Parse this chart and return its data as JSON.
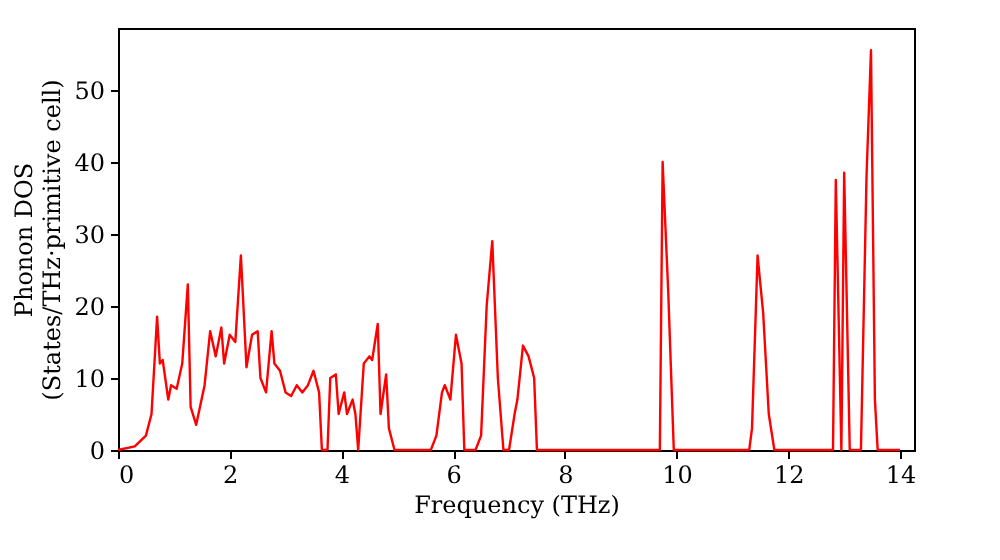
{
  "chart_data": {
    "type": "line",
    "xlabel": "Frequency (THz)",
    "ylabel": "Phonon DOS\n(States/THz·primitive cell)",
    "xlim": [
      0,
      14.25
    ],
    "ylim": [
      0,
      58.6
    ],
    "xticks": [
      0,
      2,
      4,
      6,
      8,
      10,
      12,
      14
    ],
    "yticks": [
      0,
      10,
      20,
      30,
      40,
      50
    ],
    "grid": false,
    "marker": "none",
    "line_style": "solid",
    "series": [
      {
        "color": "#ff0000",
        "x": [
          0,
          0.3,
          0.5,
          0.6,
          0.7,
          0.75,
          0.8,
          0.9,
          0.95,
          1.05,
          1.15,
          1.25,
          1.3,
          1.4,
          1.55,
          1.65,
          1.75,
          1.85,
          1.9,
          2.0,
          2.1,
          2.2,
          2.3,
          2.4,
          2.5,
          2.55,
          2.65,
          2.75,
          2.8,
          2.9,
          3.0,
          3.1,
          3.2,
          3.3,
          3.4,
          3.5,
          3.6,
          3.65,
          3.75,
          3.8,
          3.9,
          3.95,
          4.05,
          4.1,
          4.2,
          4.25,
          4.3,
          4.4,
          4.5,
          4.55,
          4.65,
          4.7,
          4.8,
          4.85,
          4.95,
          5.6,
          5.7,
          5.8,
          5.85,
          5.95,
          6.05,
          6.15,
          6.2,
          6.4,
          6.5,
          6.6,
          6.7,
          6.8,
          6.9,
          7.0,
          7.1,
          7.15,
          7.25,
          7.35,
          7.45,
          7.5,
          9.7,
          9.75,
          9.85,
          9.95,
          11.3,
          11.35,
          11.45,
          11.55,
          11.65,
          11.75,
          12.8,
          12.85,
          12.95,
          13.0,
          13.1,
          13.3,
          13.4,
          13.48,
          13.55,
          13.6,
          14.0
        ],
        "values": [
          0,
          0.5,
          2,
          5,
          18.5,
          12,
          12.5,
          7,
          9,
          8.5,
          12,
          23,
          6,
          3.5,
          9,
          16.5,
          13,
          17,
          12,
          16,
          15,
          27,
          11.5,
          16,
          16.5,
          10,
          8,
          16.5,
          12,
          11,
          8,
          7.5,
          9,
          8,
          9,
          11,
          8,
          0,
          0,
          10,
          10.5,
          5,
          8,
          5,
          7,
          5,
          0,
          12,
          13,
          12.5,
          17.5,
          5,
          10.5,
          3,
          0,
          0,
          2,
          8,
          9,
          7,
          16,
          12,
          0,
          0,
          2,
          20,
          29,
          10,
          0,
          0,
          5,
          7,
          14.5,
          13,
          10,
          0,
          0,
          40,
          22,
          0,
          0,
          3,
          27,
          19,
          5,
          0,
          0,
          37.5,
          0,
          38.5,
          0,
          0,
          38,
          55.5,
          7,
          0,
          0
        ]
      }
    ]
  }
}
